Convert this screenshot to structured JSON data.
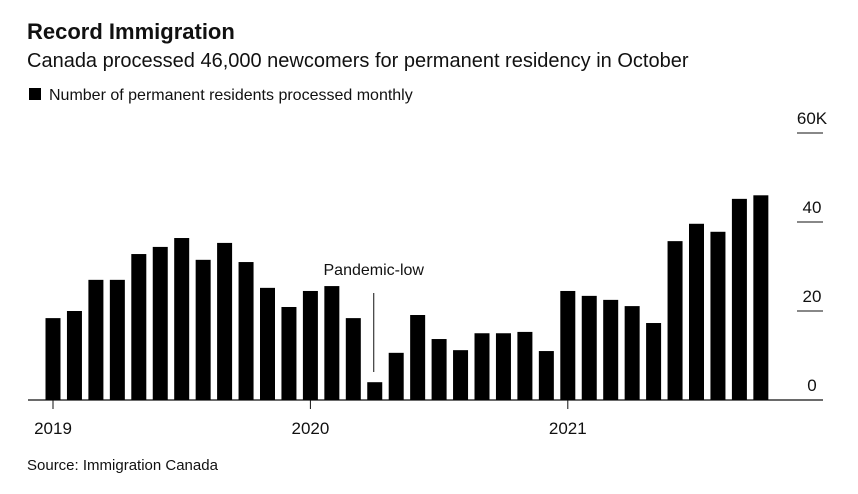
{
  "chart_data": {
    "type": "bar",
    "title": "Record Immigration",
    "subtitle": "Canada processed 46,000 newcomers for permanent residency in October",
    "annotation": "Pandemic-low",
    "source": "Source: Immigration Canada",
    "categories": [
      "2019",
      null,
      null,
      null,
      null,
      null,
      null,
      null,
      null,
      null,
      null,
      null,
      "2020",
      null,
      null,
      null,
      null,
      null,
      null,
      null,
      null,
      null,
      null,
      null,
      "2021",
      null,
      null,
      null,
      null,
      null,
      null,
      null,
      null,
      null
    ],
    "series": [
      {
        "name": "Number of permanent residents processed monthly",
        "color": "#000000",
        "values": [
          18.4,
          20,
          27,
          27,
          32.8,
          34.4,
          36.4,
          31.5,
          35.3,
          31,
          25.2,
          20.9,
          24.5,
          25.6,
          18.4,
          4,
          10.6,
          19.1,
          13.7,
          11.2,
          15,
          15,
          15.3,
          11,
          24.5,
          23.4,
          22.5,
          21.1,
          17.3,
          35.7,
          39.6,
          37.8,
          45.2,
          46
        ]
      }
    ],
    "ylim": [
      0,
      60
    ],
    "yticks": [
      0,
      20,
      40,
      {
        "value": 60,
        "label": "60K"
      }
    ],
    "grid": false
  }
}
